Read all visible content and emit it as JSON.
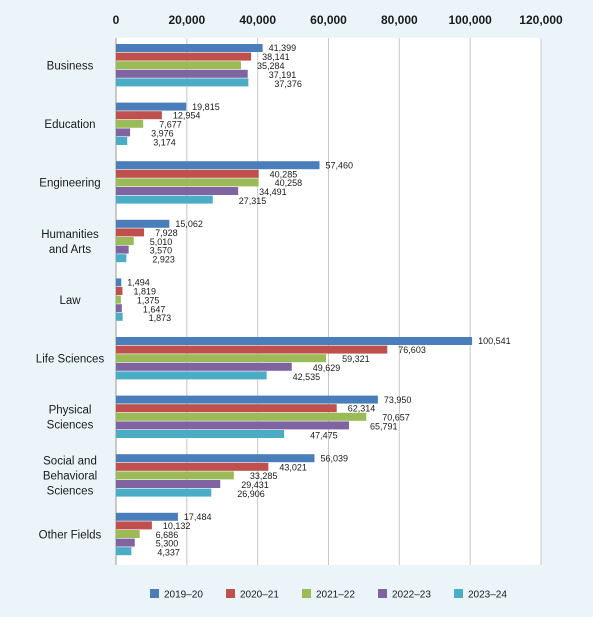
{
  "chart_data": {
    "type": "bar",
    "orientation": "horizontal",
    "categories": [
      [
        "Business"
      ],
      [
        "Education"
      ],
      [
        "Engineering"
      ],
      [
        "Humanities",
        "and Arts"
      ],
      [
        "Law"
      ],
      [
        "Life Sciences"
      ],
      [
        "Physical",
        "Sciences"
      ],
      [
        "Social and",
        "Behavioral",
        "Sciences"
      ],
      [
        "Other Fields"
      ]
    ],
    "series": [
      {
        "name": "2019–20",
        "color": "#4a7ebb",
        "values": [
          41399,
          19815,
          57460,
          15062,
          1494,
          100541,
          73950,
          56039,
          17484
        ]
      },
      {
        "name": "2020–21",
        "color": "#c0504d",
        "values": [
          38141,
          12954,
          40285,
          7928,
          1819,
          76603,
          62314,
          43021,
          10132
        ]
      },
      {
        "name": "2021–22",
        "color": "#9bbb59",
        "values": [
          35284,
          7677,
          40258,
          5010,
          1375,
          59321,
          70657,
          33285,
          6686
        ]
      },
      {
        "name": "2022–23",
        "color": "#8064a2",
        "values": [
          37191,
          3976,
          34491,
          3570,
          1647,
          49629,
          65791,
          29431,
          5300
        ]
      },
      {
        "name": "2023–24",
        "color": "#4bacc6",
        "values": [
          37376,
          3174,
          27315,
          2923,
          1873,
          42535,
          47475,
          26906,
          4337
        ]
      }
    ],
    "xlim": [
      0,
      120000
    ],
    "xticks": [
      "0",
      "20,000",
      "40,000",
      "60,000",
      "80,000",
      "100,000",
      "120,000"
    ],
    "grid": true,
    "legend_position": "bottom"
  }
}
